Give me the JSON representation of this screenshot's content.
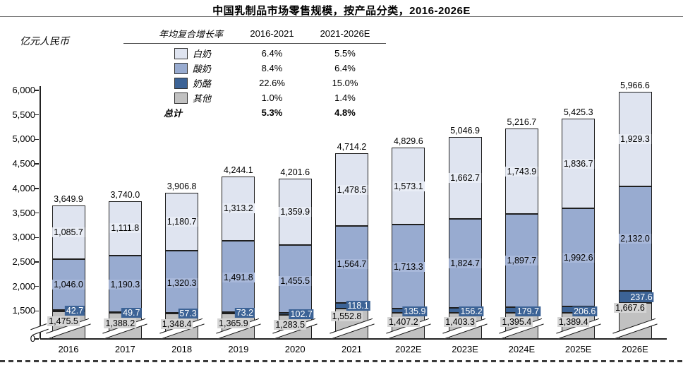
{
  "title": "中国乳制品市场零售规模，按产品分类，2016-2026E",
  "y_axis": {
    "unit": "亿元人民币",
    "ticks": [
      0,
      1500,
      2000,
      2500,
      3000,
      3500,
      4000,
      4500,
      5000,
      5500,
      6000
    ]
  },
  "cagr_table": {
    "header": {
      "metric": "年均复合增长率",
      "period1": "2016-2021",
      "period2": "2021-2026E"
    },
    "rows": [
      {
        "key": "white-milk",
        "label": "白奶",
        "cagr_2016_2021": "6.4%",
        "cagr_2021_2026": "5.5%",
        "color": "#dfe4f0"
      },
      {
        "key": "yogurt",
        "label": "酸奶",
        "cagr_2016_2021": "8.4%",
        "cagr_2021_2026": "6.4%",
        "color": "#98abd0"
      },
      {
        "key": "cheese",
        "label": "奶酪",
        "cagr_2016_2021": "22.6%",
        "cagr_2021_2026": "15.0%",
        "color": "#3c6396"
      },
      {
        "key": "other",
        "label": "其他",
        "cagr_2016_2021": "1.0%",
        "cagr_2021_2026": "1.4%",
        "color": "#c1c1c1"
      }
    ],
    "total_row": {
      "label": "总计",
      "cagr_2016_2021": "5.3%",
      "cagr_2021_2026": "4.8%"
    }
  },
  "chart_data": {
    "type": "bar",
    "stacked": true,
    "title": "中国乳制品市场零售规模，按产品分类，2016-2026E",
    "ylabel": "亿元人民币",
    "ylim": [
      0,
      6000
    ],
    "axis_break": {
      "from": 0,
      "to": 1500
    },
    "grid": false,
    "legend_position": "top-left-table",
    "categories": [
      "2016",
      "2017",
      "2018",
      "2019",
      "2020",
      "2021",
      "2022E",
      "2023E",
      "2024E",
      "2025E",
      "2026E"
    ],
    "series": [
      {
        "key": "other",
        "name": "其他",
        "color": "#c1c1c1",
        "values": [
          1475.5,
          1388.2,
          1348.4,
          1365.9,
          1283.5,
          1552.8,
          1407.2,
          1403.3,
          1395.4,
          1389.4,
          1667.6
        ]
      },
      {
        "key": "cheese",
        "name": "奶酪",
        "color": "#3c6396",
        "values": [
          42.7,
          49.7,
          57.3,
          73.2,
          102.7,
          118.1,
          135.9,
          156.2,
          179.7,
          206.6,
          237.6
        ]
      },
      {
        "key": "yogurt",
        "name": "酸奶",
        "color": "#98abd0",
        "values": [
          1046.0,
          1190.3,
          1320.3,
          1491.8,
          1455.5,
          1564.7,
          1713.3,
          1824.7,
          1897.7,
          1992.6,
          2132.0
        ]
      },
      {
        "key": "white-milk",
        "name": "白奶",
        "color": "#dfe4f0",
        "values": [
          1085.7,
          1111.8,
          1180.7,
          1313.2,
          1359.9,
          1478.5,
          1573.1,
          1662.7,
          1743.9,
          1836.7,
          1929.3
        ]
      }
    ],
    "totals": [
      3649.9,
      3740.0,
      3906.8,
      4244.1,
      4201.6,
      4714.2,
      4829.6,
      5046.9,
      5216.7,
      5425.3,
      5966.6
    ]
  }
}
